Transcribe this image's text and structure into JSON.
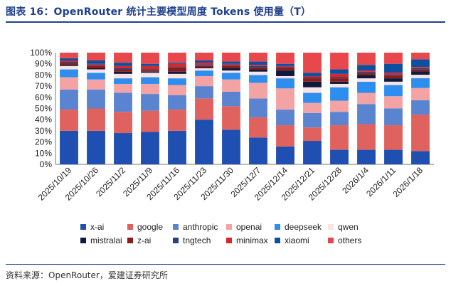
{
  "header": {
    "title": "图表 16：OpenRouter 统计主要模型周度 Tokens 使用量（T）"
  },
  "footer": {
    "source": "资料来源：OpenRouter，爱建证券研究所"
  },
  "chart_data": {
    "type": "bar",
    "stacked": true,
    "percent": true,
    "title": "OpenRouter 统计主要模型周度 Tokens 使用量（T）",
    "ylim": [
      0,
      100
    ],
    "yticks": [
      "0%",
      "10%",
      "20%",
      "30%",
      "40%",
      "50%",
      "60%",
      "70%",
      "80%",
      "90%",
      "100%"
    ],
    "categories": [
      "2025/10/19",
      "2025/10/26",
      "2025/11/2",
      "2025/11/9",
      "2025/11/16",
      "2025/11/23",
      "2025/11/30",
      "2025/12/7",
      "2025/12/14",
      "2025/12/21",
      "2025/12/28",
      "2026/1/4",
      "2026/1/11",
      "2026/1/18"
    ],
    "legend_position": "bottom",
    "series": [
      {
        "name": "x-ai",
        "color": "#1f4fb0",
        "values": [
          30,
          30,
          28,
          29,
          30,
          40,
          31,
          24,
          16,
          21,
          13,
          13,
          13,
          12
        ]
      },
      {
        "name": "google",
        "color": "#e0625f",
        "values": [
          19,
          20,
          19,
          19,
          19,
          19,
          21,
          18,
          19,
          12,
          22,
          23,
          22,
          33
        ]
      },
      {
        "name": "anthropic",
        "color": "#5b84d0",
        "values": [
          18,
          17,
          17,
          15,
          13,
          11,
          13,
          17,
          14,
          13,
          12,
          18,
          15,
          13
        ]
      },
      {
        "name": "openai",
        "color": "#f3a3a3",
        "values": [
          11,
          9,
          8,
          9,
          9,
          9,
          11,
          14,
          19,
          9,
          10,
          10,
          11,
          11
        ]
      },
      {
        "name": "deepseek",
        "color": "#2e8ef0",
        "values": [
          7,
          6,
          5,
          6,
          6,
          5,
          6,
          7,
          9,
          9,
          12,
          10,
          10,
          9
        ]
      },
      {
        "name": "qwen",
        "color": "#fbe3e3",
        "values": [
          3,
          3,
          4,
          4,
          4,
          2,
          2,
          3,
          2,
          5,
          3,
          3,
          3,
          3
        ]
      },
      {
        "name": "mistralai",
        "color": "#0d1b3e",
        "values": [
          1,
          1,
          2,
          1,
          2,
          1,
          2,
          2,
          5,
          5,
          2,
          3,
          3,
          3
        ]
      },
      {
        "name": "z-ai",
        "color": "#8b1c1c",
        "values": [
          2,
          2,
          2,
          1,
          3,
          1,
          2,
          2,
          2,
          3,
          3,
          2,
          2,
          2
        ]
      },
      {
        "name": "tngtech",
        "color": "#2d3f7f",
        "values": [
          1,
          1,
          1,
          1,
          1,
          1,
          1,
          1,
          1,
          1,
          1,
          1,
          1,
          1
        ]
      },
      {
        "name": "minimax",
        "color": "#d52828",
        "values": [
          1,
          1,
          2,
          3,
          3,
          2,
          1,
          1,
          1,
          1,
          3,
          1,
          2,
          1
        ]
      },
      {
        "name": "xiaomi",
        "color": "#0d4fa0",
        "values": [
          2,
          3,
          3,
          2,
          1,
          2,
          2,
          3,
          2,
          3,
          4,
          5,
          8,
          7
        ]
      },
      {
        "name": "others",
        "color": "#e8474b",
        "values": [
          5,
          7,
          9,
          10,
          9,
          7,
          8,
          8,
          10,
          18,
          15,
          11,
          10,
          6
        ]
      }
    ]
  }
}
